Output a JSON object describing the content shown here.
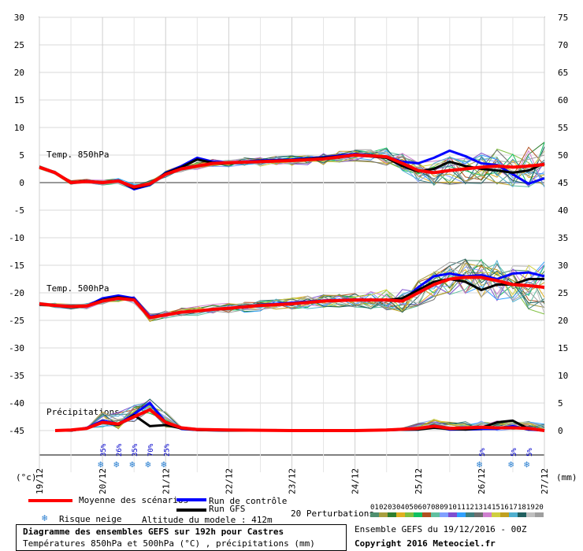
{
  "chart_data": {
    "type": "line",
    "title": "Diagramme des ensembles GEFS sur 192h pour Castres",
    "subtitle": "Températures 850hPa et 500hPa (°C) , précipitations (mm)",
    "left_axis_unit": "(°c)",
    "right_axis_unit": "(mm)",
    "left_axis": {
      "ylim": [
        -45,
        30
      ],
      "ticks": [
        30,
        25,
        20,
        15,
        10,
        5,
        0,
        -5,
        -10,
        -15,
        -20,
        -25,
        -30,
        -35,
        -40,
        -45
      ]
    },
    "right_axis": {
      "ticks": [
        75,
        70,
        65,
        60,
        55,
        50,
        45,
        40,
        35,
        30,
        25,
        20,
        15,
        10,
        5,
        0
      ]
    },
    "x_dates": [
      "19/12",
      "20/12",
      "21/12",
      "22/12",
      "23/12",
      "24/12",
      "25/12",
      "26/12",
      "27/12"
    ],
    "x_range_hours": [
      0,
      192
    ],
    "panel_labels": [
      "Temp. 850hPa",
      "Temp. 500hPa",
      "Précipitations"
    ],
    "snow_risk": [
      {
        "hour": 24,
        "label": "35%"
      },
      {
        "hour": 30,
        "label": "26%"
      },
      {
        "hour": 36,
        "label": "35%"
      },
      {
        "hour": 42,
        "label": "70%"
      },
      {
        "hour": 48,
        "label": "25%"
      },
      {
        "hour": 168,
        "label": "5%"
      },
      {
        "hour": 180,
        "label": "5%"
      },
      {
        "hour": 186,
        "label": "5%"
      }
    ],
    "series": [
      {
        "name": "Moyenne des scénarios",
        "color": "#ff0000",
        "width": 4,
        "group": "850",
        "points": [
          [
            0,
            2.8
          ],
          [
            6,
            1.8
          ],
          [
            12,
            0.0
          ],
          [
            18,
            0.2
          ],
          [
            24,
            0.0
          ],
          [
            30,
            0.3
          ],
          [
            36,
            -0.8
          ],
          [
            42,
            -0.2
          ],
          [
            48,
            1.5
          ],
          [
            54,
            2.5
          ],
          [
            60,
            3.0
          ],
          [
            66,
            3.5
          ],
          [
            72,
            3.6
          ],
          [
            84,
            3.8
          ],
          [
            96,
            4.0
          ],
          [
            108,
            4.3
          ],
          [
            120,
            5.0
          ],
          [
            132,
            4.7
          ],
          [
            138,
            3.5
          ],
          [
            144,
            2.2
          ],
          [
            150,
            1.8
          ],
          [
            156,
            2.2
          ],
          [
            162,
            2.5
          ],
          [
            168,
            2.8
          ],
          [
            174,
            3.0
          ],
          [
            180,
            2.8
          ],
          [
            186,
            3.0
          ],
          [
            192,
            3.3
          ]
        ]
      },
      {
        "name": "Run de contrôle",
        "color": "#0000ff",
        "width": 3,
        "group": "850",
        "points": [
          [
            0,
            2.8
          ],
          [
            6,
            1.8
          ],
          [
            12,
            0.0
          ],
          [
            18,
            0.3
          ],
          [
            24,
            0.0
          ],
          [
            30,
            0.4
          ],
          [
            36,
            -1.2
          ],
          [
            42,
            -0.4
          ],
          [
            48,
            1.8
          ],
          [
            54,
            3.0
          ],
          [
            60,
            4.5
          ],
          [
            66,
            3.8
          ],
          [
            72,
            3.6
          ],
          [
            84,
            4.0
          ],
          [
            96,
            4.2
          ],
          [
            108,
            4.6
          ],
          [
            120,
            5.2
          ],
          [
            132,
            4.7
          ],
          [
            138,
            3.8
          ],
          [
            144,
            3.5
          ],
          [
            150,
            4.5
          ],
          [
            156,
            5.8
          ],
          [
            162,
            4.8
          ],
          [
            168,
            3.5
          ],
          [
            174,
            3.2
          ],
          [
            180,
            1.5
          ],
          [
            186,
            -0.2
          ],
          [
            192,
            0.8
          ]
        ]
      },
      {
        "name": "Run GFS",
        "color": "#000000",
        "width": 3,
        "group": "850",
        "points": [
          [
            0,
            2.8
          ],
          [
            6,
            1.8
          ],
          [
            12,
            0.0
          ],
          [
            18,
            0.3
          ],
          [
            24,
            0.0
          ],
          [
            30,
            0.3
          ],
          [
            36,
            -1.0
          ],
          [
            42,
            -0.3
          ],
          [
            48,
            1.7
          ],
          [
            54,
            2.8
          ],
          [
            60,
            4.2
          ],
          [
            66,
            3.6
          ],
          [
            72,
            3.5
          ],
          [
            84,
            3.9
          ],
          [
            96,
            4.1
          ],
          [
            108,
            4.5
          ],
          [
            120,
            5.0
          ],
          [
            132,
            4.5
          ],
          [
            138,
            3.0
          ],
          [
            144,
            2.0
          ],
          [
            150,
            2.5
          ],
          [
            156,
            3.8
          ],
          [
            162,
            3.0
          ],
          [
            168,
            2.5
          ],
          [
            174,
            2.2
          ],
          [
            180,
            1.8
          ],
          [
            186,
            2.2
          ],
          [
            192,
            3.5
          ]
        ]
      },
      {
        "name": "Moyenne des scénarios",
        "color": "#ff0000",
        "width": 4,
        "group": "500",
        "points": [
          [
            0,
            -22.0
          ],
          [
            6,
            -22.3
          ],
          [
            12,
            -22.5
          ],
          [
            18,
            -22.4
          ],
          [
            24,
            -21.5
          ],
          [
            30,
            -21.0
          ],
          [
            36,
            -21.3
          ],
          [
            42,
            -24.5
          ],
          [
            48,
            -24.0
          ],
          [
            54,
            -23.5
          ],
          [
            60,
            -23.3
          ],
          [
            66,
            -23.0
          ],
          [
            72,
            -22.8
          ],
          [
            84,
            -22.3
          ],
          [
            96,
            -22.0
          ],
          [
            108,
            -21.5
          ],
          [
            120,
            -21.3
          ],
          [
            132,
            -21.3
          ],
          [
            138,
            -21.5
          ],
          [
            144,
            -20.0
          ],
          [
            150,
            -18.5
          ],
          [
            156,
            -17.5
          ],
          [
            162,
            -17.2
          ],
          [
            168,
            -17.2
          ],
          [
            174,
            -17.8
          ],
          [
            180,
            -18.5
          ],
          [
            186,
            -18.7
          ],
          [
            192,
            -19.0
          ]
        ]
      },
      {
        "name": "Run de contrôle",
        "color": "#0000ff",
        "width": 3,
        "group": "500",
        "points": [
          [
            0,
            -22.0
          ],
          [
            6,
            -22.3
          ],
          [
            12,
            -22.5
          ],
          [
            18,
            -22.4
          ],
          [
            24,
            -21.0
          ],
          [
            30,
            -20.5
          ],
          [
            36,
            -21.0
          ],
          [
            42,
            -24.3
          ],
          [
            48,
            -24.0
          ],
          [
            54,
            -23.5
          ],
          [
            60,
            -23.3
          ],
          [
            66,
            -23.0
          ],
          [
            72,
            -22.8
          ],
          [
            84,
            -22.2
          ],
          [
            96,
            -21.8
          ],
          [
            108,
            -21.4
          ],
          [
            120,
            -21.2
          ],
          [
            132,
            -21.3
          ],
          [
            138,
            -21.5
          ],
          [
            144,
            -19.0
          ],
          [
            150,
            -17.0
          ],
          [
            156,
            -16.5
          ],
          [
            162,
            -17.0
          ],
          [
            168,
            -16.8
          ],
          [
            174,
            -17.5
          ],
          [
            180,
            -16.5
          ],
          [
            186,
            -16.3
          ],
          [
            192,
            -17.0
          ]
        ]
      },
      {
        "name": "Run GFS",
        "color": "#000000",
        "width": 3,
        "group": "500",
        "points": [
          [
            0,
            -22.0
          ],
          [
            6,
            -22.3
          ],
          [
            12,
            -22.5
          ],
          [
            18,
            -22.4
          ],
          [
            24,
            -21.3
          ],
          [
            30,
            -20.8
          ],
          [
            36,
            -21.2
          ],
          [
            42,
            -24.5
          ],
          [
            48,
            -24.0
          ],
          [
            54,
            -23.5
          ],
          [
            60,
            -23.3
          ],
          [
            66,
            -23.0
          ],
          [
            72,
            -22.8
          ],
          [
            84,
            -22.3
          ],
          [
            96,
            -22.0
          ],
          [
            108,
            -21.5
          ],
          [
            120,
            -21.3
          ],
          [
            132,
            -21.3
          ],
          [
            138,
            -21.0
          ],
          [
            144,
            -19.5
          ],
          [
            150,
            -18.0
          ],
          [
            156,
            -17.5
          ],
          [
            162,
            -18.0
          ],
          [
            168,
            -19.5
          ],
          [
            174,
            -18.5
          ],
          [
            180,
            -18.5
          ],
          [
            186,
            -17.5
          ],
          [
            192,
            -17.5
          ]
        ]
      },
      {
        "name": "Moyenne des scénarios",
        "color": "#ff0000",
        "width": 4,
        "group": "precip",
        "points": [
          [
            6,
            0.0
          ],
          [
            12,
            0.1
          ],
          [
            18,
            0.4
          ],
          [
            24,
            1.5
          ],
          [
            30,
            1.2
          ],
          [
            36,
            2.5
          ],
          [
            42,
            3.8
          ],
          [
            48,
            1.5
          ],
          [
            54,
            0.5
          ],
          [
            60,
            0.2
          ],
          [
            72,
            0.1
          ],
          [
            96,
            0.0
          ],
          [
            120,
            0.0
          ],
          [
            132,
            0.1
          ],
          [
            144,
            0.4
          ],
          [
            150,
            0.8
          ],
          [
            156,
            0.4
          ],
          [
            162,
            0.5
          ],
          [
            168,
            0.6
          ],
          [
            174,
            0.5
          ],
          [
            180,
            0.5
          ],
          [
            186,
            0.4
          ],
          [
            192,
            0.0
          ]
        ]
      },
      {
        "name": "Run de contrôle",
        "color": "#0000ff",
        "width": 3,
        "group": "precip",
        "points": [
          [
            6,
            0.0
          ],
          [
            12,
            0.0
          ],
          [
            18,
            0.5
          ],
          [
            24,
            1.8
          ],
          [
            30,
            1.2
          ],
          [
            36,
            3.0
          ],
          [
            42,
            5.0
          ],
          [
            48,
            1.5
          ],
          [
            54,
            0.3
          ],
          [
            60,
            0.1
          ],
          [
            72,
            0.0
          ],
          [
            96,
            0.0
          ],
          [
            120,
            0.0
          ],
          [
            144,
            0.2
          ],
          [
            150,
            0.8
          ],
          [
            156,
            0.2
          ],
          [
            162,
            0.2
          ],
          [
            168,
            0.3
          ],
          [
            174,
            0.3
          ],
          [
            180,
            0.8
          ],
          [
            186,
            0.2
          ],
          [
            192,
            0.0
          ]
        ]
      },
      {
        "name": "Run GFS",
        "color": "#000000",
        "width": 3,
        "group": "precip",
        "points": [
          [
            6,
            0.0
          ],
          [
            12,
            0.0
          ],
          [
            18,
            0.4
          ],
          [
            24,
            1.5
          ],
          [
            30,
            1.0
          ],
          [
            36,
            2.8
          ],
          [
            42,
            0.8
          ],
          [
            48,
            1.0
          ],
          [
            54,
            0.4
          ],
          [
            60,
            0.1
          ],
          [
            72,
            0.0
          ],
          [
            96,
            0.0
          ],
          [
            120,
            0.0
          ],
          [
            144,
            0.2
          ],
          [
            150,
            0.5
          ],
          [
            156,
            0.3
          ],
          [
            162,
            0.2
          ],
          [
            168,
            0.5
          ],
          [
            174,
            1.5
          ],
          [
            180,
            1.8
          ],
          [
            186,
            0.3
          ],
          [
            192,
            0.0
          ]
        ]
      }
    ],
    "perturbations": {
      "label": "20 Perturbations",
      "ids": [
        "01",
        "02",
        "03",
        "04",
        "05",
        "06",
        "07",
        "08",
        "09",
        "10",
        "11",
        "12",
        "13",
        "14",
        "15",
        "16",
        "17",
        "18",
        "19",
        "20"
      ],
      "colors": [
        "#4f8f6f",
        "#a89f3f",
        "#2f7f2f",
        "#e0b020",
        "#7fbf3f",
        "#10c060",
        "#b05020",
        "#60c0a0",
        "#80a0ff",
        "#7f4fd0",
        "#30a0ff",
        "#3f7f7f",
        "#6f6f6f",
        "#cf7fcf",
        "#cfcf3f",
        "#c0a020",
        "#4fafcf",
        "#205f5f",
        "#bfbfbf",
        "#9f9f9f"
      ],
      "spread_850": [
        3.0,
        2.5,
        2.8,
        3.5
      ],
      "spread_500": [
        3.5,
        3.0,
        3.2,
        4.0
      ],
      "precip_max": 9.5
    }
  },
  "legend": {
    "mean_label": "Moyenne des scénarios",
    "control_label": "Run de contrôle",
    "gfs_label": "Run GFS",
    "snow_label": "Risque neige",
    "altitude_label": "Altitude du modele : 412m",
    "perturbations_label": "20 Perturbations"
  },
  "footer": {
    "ensemble_label": "Ensemble GEFS du 19/12/2016 - 00Z",
    "copyright": "Copyright 2016 Meteociel.fr"
  }
}
